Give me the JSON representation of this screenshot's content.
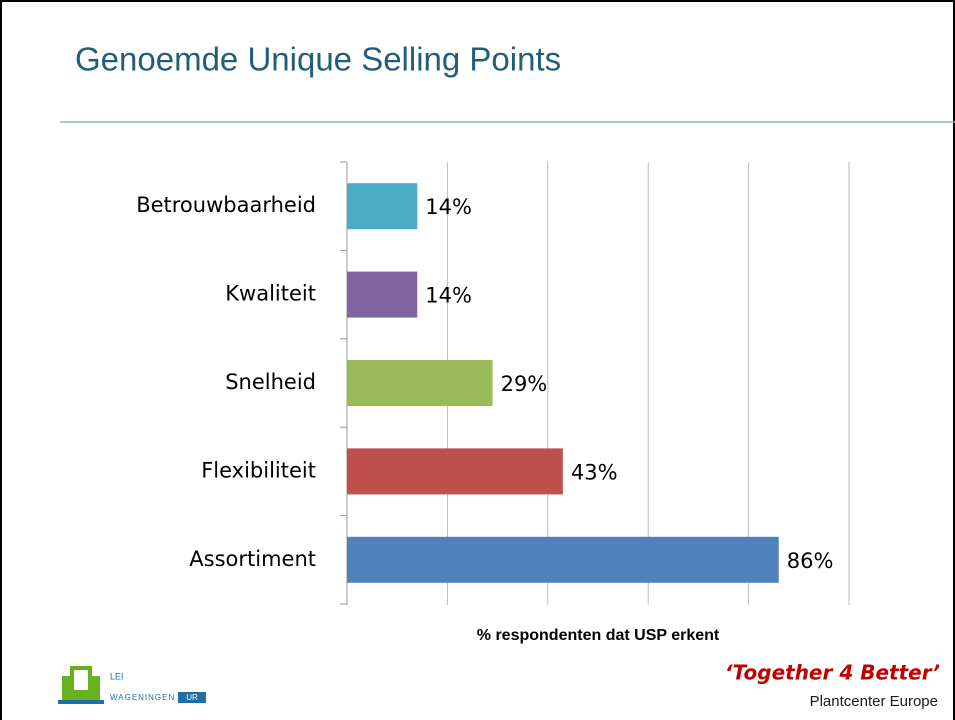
{
  "chart_data": {
    "type": "barh",
    "title": "Genoemde Unique Selling Points",
    "categories": [
      "Betrouwbaarheid",
      "Kwaliteit",
      "Snelheid",
      "Flexibiliteit",
      "Assortiment"
    ],
    "values": [
      14,
      14,
      29,
      43,
      86
    ],
    "value_labels": [
      "14%",
      "14%",
      "29%",
      "43%",
      "86%"
    ],
    "colors": [
      "#4bacc6",
      "#8064a2",
      "#9bbb59",
      "#c0504d",
      "#4f81bd"
    ],
    "xlabel": "% respondenten dat USP erkent",
    "xlim": [
      0,
      100
    ],
    "xticks": [
      0,
      20,
      40,
      60,
      80,
      100
    ],
    "grid": true
  },
  "footer": {
    "slogan": "‘Together 4 Better’",
    "company": "Plantcenter Europe",
    "logo_top": "LEI",
    "logo_bottom": "WAGENINGEN",
    "logo_badge": "UR"
  }
}
